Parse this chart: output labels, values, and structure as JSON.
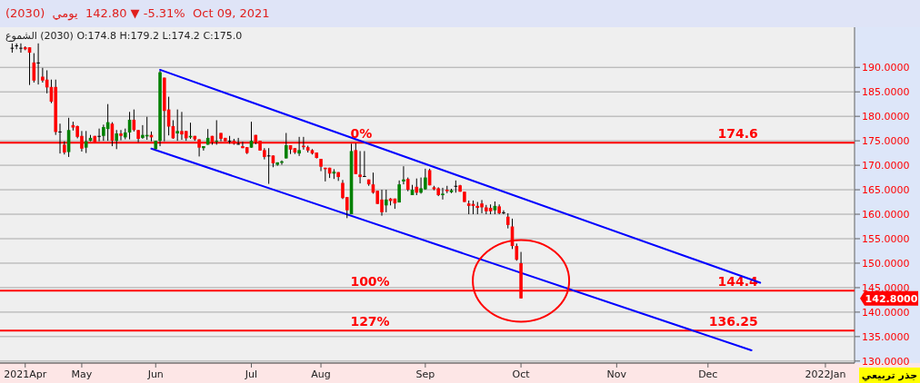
{
  "chart_data": {
    "type": "candlestick",
    "title": "(2030)  يومي  142.80 ▼ -5.31%  Oct 09, 2021",
    "subtitle": "الشموع (2030) O:174.8 H:179.2 L:174.2 C:175.0",
    "categories": [
      null,
      null,
      null,
      "2021Apr",
      null,
      null,
      null,
      null,
      null,
      null,
      null,
      null,
      null,
      null,
      null,
      null,
      "May",
      null,
      null,
      null,
      null,
      null,
      null,
      null,
      null,
      null,
      null,
      null,
      null,
      null,
      null,
      null,
      null,
      "Jun",
      null,
      null,
      null,
      null,
      null,
      null,
      null,
      null,
      null,
      null,
      null,
      null,
      null,
      null,
      null,
      null,
      null,
      null,
      null,
      null,
      null,
      "Jul",
      null,
      null,
      null,
      null,
      null,
      null,
      null,
      null,
      null,
      null,
      null,
      null,
      null,
      null,
      null,
      "Aug",
      null,
      null,
      null,
      null,
      null,
      null,
      null,
      null,
      null,
      null,
      null,
      null,
      null,
      null,
      null,
      null,
      null,
      null,
      null,
      null,
      null,
      null,
      null,
      "Sep",
      null,
      null,
      null,
      null,
      null,
      null,
      null,
      null,
      null,
      null,
      null,
      null,
      null,
      null,
      null,
      null,
      null,
      null,
      null,
      null,
      null,
      "Oct",
      null,
      null,
      null,
      null,
      null,
      null,
      null,
      null,
      null,
      null,
      null,
      null,
      null,
      null,
      null,
      null,
      null,
      null,
      null,
      null,
      null,
      "Nov",
      null,
      null,
      null,
      null,
      null,
      null,
      null,
      null,
      null,
      null,
      null,
      null,
      null,
      null,
      null,
      null,
      null,
      null,
      null,
      null,
      "Dec",
      null,
      null,
      null,
      null,
      null,
      null,
      null,
      null,
      null,
      null,
      null,
      null,
      null,
      null,
      null,
      null,
      null,
      null,
      null,
      null,
      null,
      null,
      null,
      null,
      null,
      null,
      "2022Jan",
      null,
      null,
      null,
      null,
      null
    ],
    "ohlc": [
      [
        194,
        194.9,
        193,
        194
      ],
      [
        194.5,
        194.9,
        193.7,
        194.5
      ],
      [
        194,
        194.9,
        193,
        194
      ],
      [
        194.1,
        194.3,
        193.5,
        193.7
      ],
      [
        194.1,
        194.1,
        186.4,
        193
      ],
      [
        191,
        192.9,
        186.9,
        187.3
      ],
      [
        191,
        194.9,
        186.5,
        191
      ],
      [
        188.1,
        189.9,
        186.9,
        187.3
      ],
      [
        187.5,
        189.4,
        184.7,
        185.9
      ],
      [
        186,
        187.5,
        182.7,
        183
      ],
      [
        186,
        187.5,
        176.2,
        176.8
      ],
      [
        176.9,
        178.5,
        172.4,
        176.9
      ],
      [
        174.2,
        174.9,
        172.2,
        172.6
      ],
      [
        172.7,
        179.7,
        171.7,
        177.2
      ],
      [
        178.2,
        178.9,
        177.1,
        177.7
      ],
      [
        178,
        178.1,
        175.5,
        175.8
      ],
      [
        176,
        177,
        172.8,
        173.4
      ],
      [
        173.6,
        177,
        172.5,
        174.9
      ],
      [
        175,
        176.2,
        174.9,
        175.6
      ],
      [
        176,
        176,
        174.5,
        174.5
      ],
      [
        176,
        177.5,
        174.9,
        176
      ],
      [
        176,
        178.3,
        175,
        177.8
      ],
      [
        177.4,
        182.5,
        175,
        178.8
      ],
      [
        178.5,
        178.8,
        173.9,
        175
      ],
      [
        175,
        177.2,
        173.3,
        176.5
      ],
      [
        176.5,
        177.2,
        175.1,
        176
      ],
      [
        175.7,
        177.5,
        175.3,
        176.7
      ],
      [
        176.7,
        180.9,
        175.3,
        179.3
      ],
      [
        179.3,
        181.4,
        176.9,
        177.2
      ],
      [
        177.2,
        177.2,
        174.7,
        175.4
      ],
      [
        175.6,
        178.2,
        175.4,
        176.2
      ],
      [
        175.9,
        179.9,
        175.2,
        176.2
      ],
      [
        176.2,
        176.9,
        174.9,
        175.7
      ],
      [
        173.3,
        175,
        173.3,
        175
      ],
      [
        175,
        189.3,
        173.9,
        189
      ],
      [
        187.9,
        187.9,
        174.9,
        181.1
      ],
      [
        181.4,
        184,
        176.1,
        177.9
      ],
      [
        178,
        179.2,
        175.4,
        175.5
      ],
      [
        176.5,
        181.4,
        175,
        177
      ],
      [
        177,
        180.9,
        175.2,
        176.3
      ],
      [
        177,
        177,
        175,
        175.5
      ],
      [
        175.7,
        178.7,
        175.4,
        176
      ],
      [
        176,
        176,
        175,
        175.3
      ],
      [
        175.3,
        175.3,
        171.8,
        173.6
      ],
      [
        173.5,
        173.9,
        173,
        173.9
      ],
      [
        174.2,
        177.4,
        174.2,
        175.6
      ],
      [
        176,
        176,
        174.2,
        174.7
      ],
      [
        174.8,
        179.2,
        174.2,
        175
      ],
      [
        176.6,
        176.6,
        174.9,
        175.4
      ],
      [
        175.6,
        175.6,
        174.9,
        174.9
      ],
      [
        175,
        176,
        174.4,
        175
      ],
      [
        175,
        175.4,
        174.2,
        174.4
      ],
      [
        174.4,
        175.6,
        174.2,
        174.4
      ],
      [
        173.9,
        174.8,
        173.5,
        173.5
      ],
      [
        173.7,
        173.7,
        172.3,
        172.5
      ],
      [
        173.6,
        178.9,
        173.6,
        175
      ],
      [
        176.2,
        176.2,
        174.3,
        174.7
      ],
      [
        175,
        175,
        173,
        173
      ],
      [
        173.1,
        173.5,
        171.2,
        171.7
      ],
      [
        172,
        173.5,
        166.2,
        172
      ],
      [
        172,
        172,
        169.6,
        170.4
      ],
      [
        170.1,
        170.6,
        169.9,
        170.6
      ],
      [
        170.5,
        171,
        170.1,
        170.8
      ],
      [
        171.4,
        176.6,
        171.4,
        174.1
      ],
      [
        174.1,
        174.1,
        172.3,
        173.2
      ],
      [
        173.5,
        173.5,
        172.3,
        172.6
      ],
      [
        172.4,
        175.8,
        171.9,
        173.1
      ],
      [
        174,
        175.8,
        173.2,
        173.7
      ],
      [
        173.7,
        174,
        172.6,
        173
      ],
      [
        173.1,
        173.3,
        172.2,
        172.4
      ],
      [
        172.6,
        172.6,
        171.4,
        171.5
      ],
      [
        171.3,
        171.3,
        168.8,
        169.7
      ],
      [
        169.5,
        169.5,
        166.7,
        169.2
      ],
      [
        169.5,
        169.5,
        167.4,
        168.3
      ],
      [
        168.3,
        169.2,
        167.2,
        168.7
      ],
      [
        168.6,
        168.6,
        166.8,
        167.6
      ],
      [
        166.4,
        167,
        163.1,
        163.3
      ],
      [
        163.5,
        163.5,
        159.2,
        160.8
      ],
      [
        160,
        174.4,
        160,
        172.9
      ],
      [
        173.1,
        174.5,
        168.2,
        168.2
      ],
      [
        168.1,
        172.9,
        166.3,
        167.6
      ],
      [
        167.8,
        172.9,
        167.6,
        167.8
      ],
      [
        167.1,
        167.1,
        165.8,
        166.1
      ],
      [
        166.1,
        168.5,
        164.2,
        164.4
      ],
      [
        164.8,
        164.8,
        162.1,
        162.1
      ],
      [
        163,
        165,
        159.7,
        160.4
      ],
      [
        161.8,
        165,
        160.4,
        163
      ],
      [
        163.2,
        163.3,
        161.8,
        162.7
      ],
      [
        163.2,
        163.2,
        161.1,
        162.2
      ],
      [
        162.4,
        166.9,
        162.4,
        166.1
      ],
      [
        166.7,
        169.8,
        166.1,
        167.1
      ],
      [
        167.2,
        167.5,
        164.7,
        165
      ],
      [
        163.9,
        166,
        163.9,
        165
      ],
      [
        165.6,
        167.3,
        163.9,
        164.4
      ],
      [
        164.4,
        167.5,
        164.2,
        165.3
      ],
      [
        165.1,
        169.3,
        165,
        167.5
      ],
      [
        169,
        169.3,
        165.9,
        165.9
      ],
      [
        165.5,
        165.8,
        164.9,
        165.1
      ],
      [
        165.3,
        165.5,
        163.7,
        163.9
      ],
      [
        163.9,
        165.4,
        163,
        164.2
      ],
      [
        165,
        165.8,
        164.3,
        164.7
      ],
      [
        164.5,
        165.2,
        164.3,
        164.9
      ],
      [
        165.8,
        166.9,
        164.4,
        165.8
      ],
      [
        165.9,
        166,
        164.6,
        164.6
      ],
      [
        164.6,
        164.6,
        162.5,
        162.5
      ],
      [
        162.2,
        162.8,
        160,
        161.7
      ],
      [
        162.1,
        162.8,
        160,
        161.7
      ],
      [
        161.7,
        162.5,
        160,
        161.3
      ],
      [
        162.2,
        162.9,
        160.2,
        161.4
      ],
      [
        161.4,
        161.9,
        160,
        160.6
      ],
      [
        161.3,
        162,
        160,
        160.6
      ],
      [
        160.8,
        162.6,
        160,
        161.7
      ],
      [
        161.6,
        162,
        160,
        160.2
      ],
      [
        160.4,
        160.8,
        160,
        160.4
      ],
      [
        159.5,
        160.2,
        157.1,
        157.8
      ],
      [
        157.5,
        159.1,
        152.9,
        153.5
      ],
      [
        153.5,
        154,
        150.5,
        150.7
      ],
      [
        150,
        152.3,
        142.8,
        142.8
      ],
      null,
      null,
      null,
      null,
      null,
      null,
      null,
      null,
      null,
      null,
      null,
      null,
      null,
      null,
      null,
      null,
      null,
      null,
      null,
      null,
      null,
      null,
      null,
      null,
      null,
      null,
      null,
      null,
      null,
      null,
      null,
      null,
      null,
      null,
      null,
      null,
      null,
      null,
      null,
      null,
      null,
      null,
      null,
      null,
      null,
      null,
      null,
      null,
      null,
      null,
      null,
      null,
      null,
      null,
      null,
      null,
      null,
      null,
      null,
      null,
      null,
      null,
      null,
      null,
      null,
      null,
      null,
      null,
      null,
      null,
      null,
      null,
      null,
      null,
      null
    ],
    "series": [
      {
        "type": "line",
        "color": "#0000ff",
        "values": [
          null,
          null,
          null,
          null,
          null,
          null,
          null,
          null,
          null,
          null,
          null,
          null,
          null,
          null,
          null,
          null,
          null,
          null,
          null,
          null,
          null,
          null,
          null,
          null,
          null,
          null,
          null,
          null,
          null,
          null,
          null,
          null,
          null,
          null,
          189.5,
          null,
          null,
          null,
          null,
          null,
          null,
          null,
          null,
          null,
          null,
          null,
          null,
          null,
          null,
          null,
          null,
          null,
          null,
          null,
          null,
          null,
          null,
          null,
          null,
          null,
          null,
          null,
          null,
          null,
          null,
          null,
          null,
          null,
          null,
          null,
          null,
          null,
          null,
          null,
          null,
          null,
          null,
          null,
          null,
          null,
          null,
          null,
          null,
          null,
          null,
          null,
          null,
          null,
          null,
          null,
          null,
          null,
          null,
          null,
          null,
          null,
          null,
          null,
          null,
          null,
          null,
          null,
          null,
          null,
          null,
          null,
          null,
          null,
          null,
          null,
          null,
          null,
          null,
          null,
          null,
          null,
          null,
          null,
          null,
          null,
          null,
          null,
          null,
          null,
          null,
          null,
          null,
          null,
          null,
          null,
          null,
          null,
          null,
          null,
          null,
          null,
          null,
          null,
          null,
          null,
          null,
          null,
          null,
          null,
          null,
          null,
          null,
          null,
          null,
          null,
          null,
          null,
          null,
          null,
          null,
          null,
          null,
          null,
          null,
          null,
          null,
          null,
          null,
          null,
          null,
          null,
          null,
          null,
          null,
          null,
          null,
          null,
          146,
          null,
          null,
          null,
          null,
          null,
          null,
          null,
          null,
          null,
          null,
          null,
          null,
          null,
          null,
          null,
          null,
          null,
          null,
          null,
          null
        ]
      },
      {
        "type": "line",
        "color": "#0000ff",
        "values": [
          null,
          null,
          null,
          null,
          null,
          null,
          null,
          null,
          null,
          null,
          null,
          null,
          null,
          null,
          null,
          null,
          null,
          null,
          null,
          null,
          null,
          null,
          null,
          null,
          null,
          null,
          null,
          null,
          null,
          null,
          null,
          null,
          173.4,
          null,
          null,
          null,
          null,
          null,
          null,
          null,
          null,
          null,
          null,
          null,
          null,
          null,
          null,
          null,
          null,
          null,
          null,
          null,
          null,
          null,
          null,
          null,
          null,
          null,
          null,
          null,
          null,
          null,
          null,
          null,
          null,
          null,
          null,
          null,
          null,
          null,
          null,
          null,
          null,
          null,
          null,
          null,
          null,
          null,
          null,
          null,
          null,
          null,
          null,
          null,
          null,
          null,
          null,
          null,
          null,
          null,
          null,
          null,
          null,
          null,
          null,
          null,
          null,
          null,
          null,
          null,
          null,
          null,
          null,
          null,
          null,
          null,
          null,
          null,
          null,
          null,
          null,
          null,
          null,
          null,
          null,
          null,
          null,
          null,
          null,
          null,
          null,
          null,
          null,
          null,
          null,
          null,
          null,
          null,
          null,
          null,
          null,
          null,
          null,
          null,
          null,
          null,
          null,
          null,
          null,
          null,
          null,
          null,
          null,
          null,
          null,
          null,
          null,
          null,
          null,
          null,
          null,
          null,
          null,
          null,
          null,
          null,
          null,
          null,
          null,
          null,
          null,
          null,
          null,
          null,
          null,
          null,
          null,
          null,
          null,
          null,
          132.2,
          null,
          null,
          null,
          null,
          null,
          null,
          null,
          null,
          null,
          null,
          null,
          null,
          null,
          null,
          null,
          null,
          null,
          null,
          null,
          null,
          null,
          null
        ]
      }
    ],
    "ylim": [
      129.6,
      198.2
    ],
    "yticks": [
      {
        "value": 130,
        "label": "130.0000"
      },
      {
        "value": 135,
        "label": "135.0000"
      },
      {
        "value": 140,
        "label": "140.0000"
      },
      {
        "value": 145,
        "label": "145.0000"
      },
      {
        "value": 150,
        "label": "150.0000"
      },
      {
        "value": 155,
        "label": "155.0000"
      },
      {
        "value": 160,
        "label": "160.0000"
      },
      {
        "value": 165,
        "label": "165.0000"
      },
      {
        "value": 170,
        "label": "170.0000"
      },
      {
        "value": 175,
        "label": "175.0000"
      },
      {
        "value": 180,
        "label": "180.0000"
      },
      {
        "value": 185,
        "label": "185.0000"
      },
      {
        "value": 190,
        "label": "190.0000"
      }
    ],
    "grid": "y",
    "ref_lines": [
      {
        "axis": "y",
        "value": 174.6,
        "label": "174.6",
        "color": "#ff0000"
      },
      {
        "axis": "y",
        "value": 144.4,
        "label": "144.4",
        "color": "#ff0000"
      },
      {
        "axis": "y",
        "value": 136.25,
        "label": "136.25",
        "color": "#ff0000"
      }
    ],
    "annotations": [
      "142.8000",
      "جذر تربيعي",
      {
        "text": "0%",
        "y": 174.6
      },
      {
        "text": "100%",
        "y": 144.4
      },
      {
        "text": "127%",
        "y": 136.25
      }
    ]
  }
}
